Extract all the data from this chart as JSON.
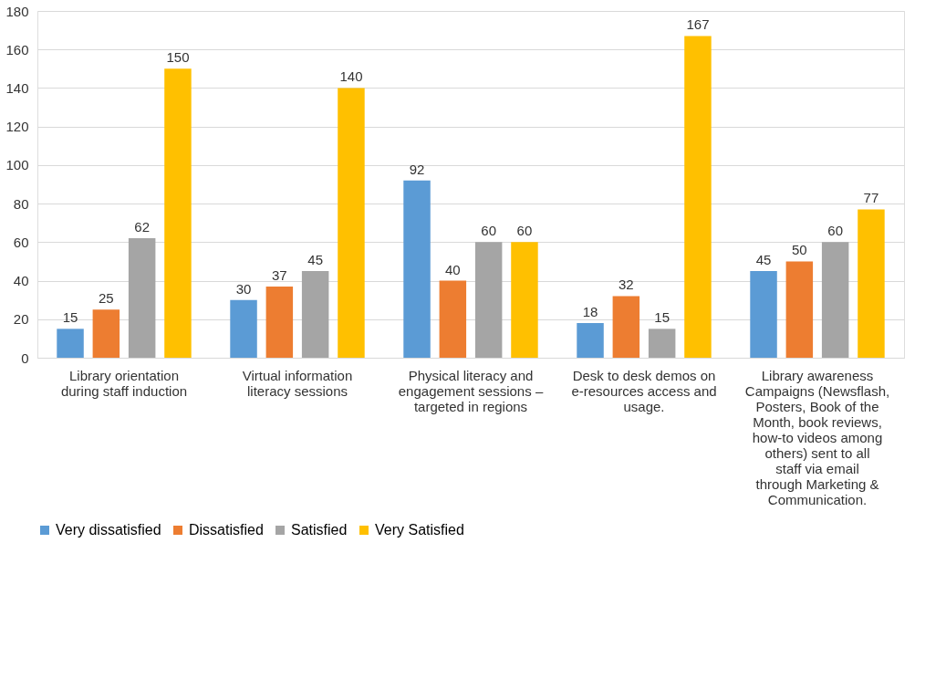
{
  "chart_data": {
    "type": "bar",
    "categories": [
      "Library orientation during staff induction",
      "Virtual information literacy sessions",
      "Physical literacy and engagement sessions – targeted in regions",
      "Desk to desk demos on e-resources access and usage.",
      "Library awareness Campaigns (Newsflash, Posters, Book of the Month, book reviews, how-to videos among others) sent to all staff via email through Marketing & Communication."
    ],
    "series": [
      {
        "name": "Very dissatisfied",
        "color": "#5b9bd5",
        "values": [
          15,
          30,
          92,
          18,
          45
        ]
      },
      {
        "name": "Dissatisfied",
        "color": "#ed7d31",
        "values": [
          25,
          37,
          40,
          32,
          50
        ]
      },
      {
        "name": "Satisfied",
        "color": "#a5a5a5",
        "values": [
          62,
          45,
          60,
          15,
          60
        ]
      },
      {
        "name": "Very Satisfied",
        "color": "#ffc000",
        "values": [
          150,
          140,
          60,
          167,
          77
        ]
      }
    ],
    "ylim": [
      0,
      180
    ],
    "yticks": [
      0,
      20,
      40,
      60,
      80,
      100,
      120,
      140,
      160,
      180
    ],
    "grid": "y",
    "legend": "bottom",
    "data_labels": true
  }
}
